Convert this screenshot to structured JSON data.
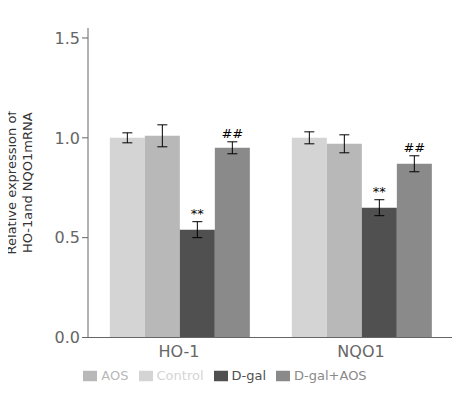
{
  "chart_data": {
    "type": "bar",
    "categories": [
      "HO-1",
      "NQO1"
    ],
    "series": [
      {
        "name": "Control",
        "color": "#d4d4d4",
        "values": [
          1.0,
          1.0
        ],
        "errors": [
          0.025,
          0.03
        ]
      },
      {
        "name": "AOS",
        "color": "#b8b8b8",
        "values": [
          1.01,
          0.97
        ],
        "errors": [
          0.055,
          0.045
        ]
      },
      {
        "name": "D-gal",
        "color": "#505050",
        "values": [
          0.54,
          0.65
        ],
        "errors": [
          0.04,
          0.04
        ],
        "annotations": [
          "**",
          "**"
        ]
      },
      {
        "name": "D-gal+AOS",
        "color": "#8a8a8a",
        "values": [
          0.95,
          0.87
        ],
        "errors": [
          0.03,
          0.04
        ],
        "annotations": [
          "##",
          "##"
        ]
      }
    ],
    "ylabel": "Relative expression of\nHO-1and NQO1mRNA",
    "ylim": [
      0.0,
      1.55
    ],
    "yticks": [
      {
        "value": 0.0,
        "label": "0.0"
      },
      {
        "value": 0.5,
        "label": "0.5"
      },
      {
        "value": 1.0,
        "label": "1.0"
      },
      {
        "value": 1.5,
        "label": "1.5"
      }
    ],
    "grid": false,
    "legend": "bottom"
  }
}
